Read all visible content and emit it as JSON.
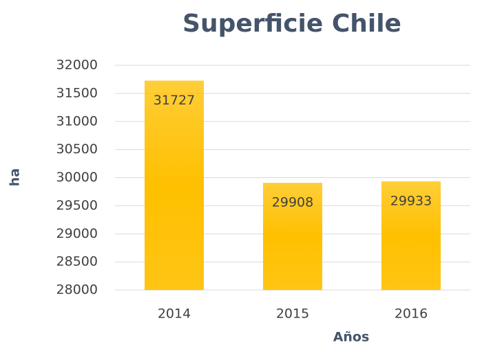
{
  "chart_data": {
    "type": "bar",
    "title": "Superficie Chile",
    "x_label": "Años",
    "y_label": "ha",
    "categories": [
      "2014",
      "2015",
      "2016"
    ],
    "values": [
      31727,
      29908,
      29933
    ],
    "color": "#ffc000",
    "ylim": [
      28000,
      32000
    ],
    "yticks": [
      28000,
      28500,
      29000,
      29500,
      30000,
      30500,
      31000,
      31500,
      32000
    ],
    "grid": true
  }
}
